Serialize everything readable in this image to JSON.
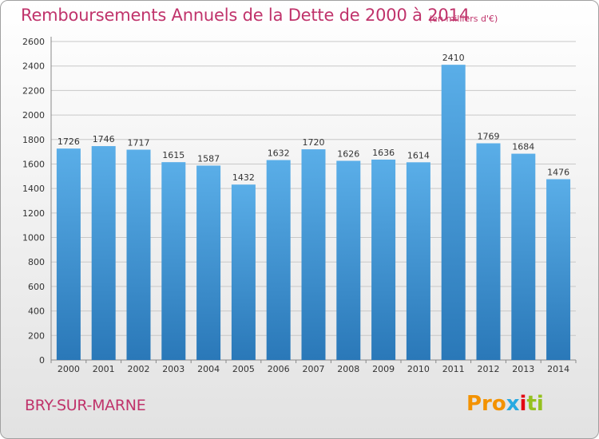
{
  "header": {
    "title": "Remboursements Annuels de la Dette de 2000 à 2014",
    "unit": "(en milliers d'€)"
  },
  "footer": {
    "commune": "BRY-SUR-MARNE",
    "logo_parts": [
      "Pro",
      "x",
      "i",
      "ti"
    ]
  },
  "colors": {
    "bar_top": "#5aaee8",
    "bar_bottom": "#2a78b8",
    "title": "#c0336b",
    "grid": "#c8c8c8"
  },
  "chart_data": {
    "type": "bar",
    "title": "Remboursements Annuels de la Dette de 2000 à 2014",
    "xlabel": "",
    "ylabel": "",
    "categories": [
      "2000",
      "2001",
      "2002",
      "2003",
      "2004",
      "2005",
      "2006",
      "2007",
      "2008",
      "2009",
      "2010",
      "2011",
      "2012",
      "2013",
      "2014"
    ],
    "values": [
      1726,
      1746,
      1717,
      1615,
      1587,
      1432,
      1632,
      1720,
      1626,
      1636,
      1614,
      2410,
      1769,
      1684,
      1476
    ],
    "ylim": [
      0,
      2600
    ],
    "yticks": [
      0,
      200,
      400,
      600,
      800,
      1000,
      1200,
      1400,
      1600,
      1800,
      2000,
      2200,
      2400,
      2600
    ],
    "grid": true,
    "data_labels": true
  }
}
